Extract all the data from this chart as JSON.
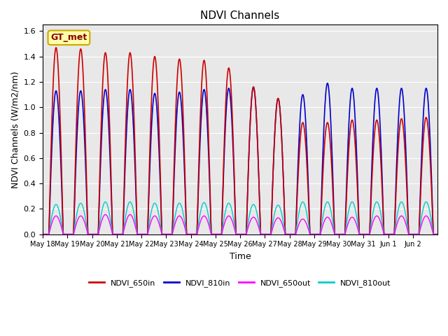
{
  "title": "NDVI Channels",
  "ylabel": "NDVI Channels (W/m2/nm)",
  "xlabel": "Time",
  "ylim": [
    0.0,
    1.65
  ],
  "background_color": "#e8e8e8",
  "legend_label": "GT_met",
  "series": {
    "NDVI_650in": {
      "color": "#cc0000",
      "linewidth": 1.2
    },
    "NDVI_810in": {
      "color": "#0000cc",
      "linewidth": 1.2
    },
    "NDVI_650out": {
      "color": "#ff00ff",
      "linewidth": 1.0
    },
    "NDVI_810out": {
      "color": "#00cccc",
      "linewidth": 1.0
    }
  },
  "n_days": 16,
  "tick_labels": [
    "May 18",
    "May 19",
    "May 20",
    "May 21",
    "May 22",
    "May 23",
    "May 24",
    "May 25",
    "May 26",
    "May 27",
    "May 28",
    "May 29",
    "May 30",
    "May 31",
    "Jun 1",
    "Jun 2"
  ],
  "peaks_650in": [
    1.47,
    1.46,
    1.43,
    1.43,
    1.4,
    1.38,
    1.37,
    1.31,
    1.16,
    1.07,
    0.88,
    0.88,
    0.9,
    0.9,
    0.91,
    0.92
  ],
  "peaks_810in": [
    1.13,
    1.13,
    1.14,
    1.14,
    1.11,
    1.12,
    1.14,
    1.15,
    1.16,
    1.07,
    1.1,
    1.19,
    1.15,
    1.15,
    1.15,
    1.15
  ],
  "peaks_650out": [
    0.145,
    0.145,
    0.155,
    0.155,
    0.145,
    0.145,
    0.145,
    0.145,
    0.135,
    0.13,
    0.12,
    0.135,
    0.135,
    0.145,
    0.145,
    0.145
  ],
  "peaks_810out": [
    0.235,
    0.245,
    0.255,
    0.255,
    0.245,
    0.245,
    0.25,
    0.245,
    0.235,
    0.23,
    0.255,
    0.255,
    0.255,
    0.255,
    0.255,
    0.255
  ],
  "yticks": [
    0.0,
    0.2,
    0.4,
    0.6,
    0.8,
    1.0,
    1.2,
    1.4,
    1.6
  ]
}
